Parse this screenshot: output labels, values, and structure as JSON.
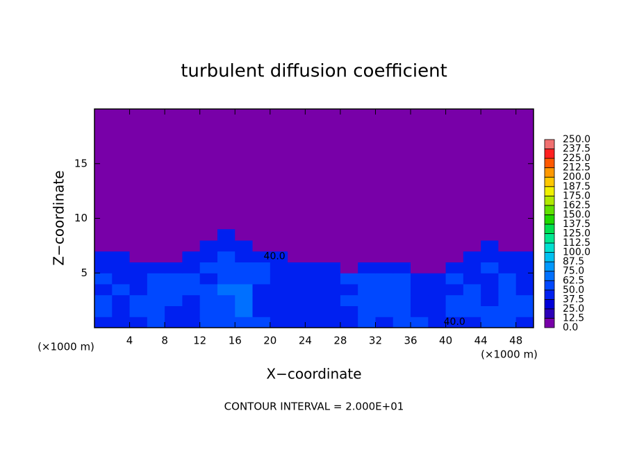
{
  "chart_data": {
    "type": "heatmap",
    "title": "turbulent diffusion coefficient",
    "xlabel": "X−coordinate",
    "ylabel": "Z−coordinate",
    "x_unit_left": "(×1000 m)",
    "x_unit_right": "(×1000 m)",
    "footnote": "CONTOUR INTERVAL = 2.000E+01",
    "xlim": [
      0,
      50
    ],
    "ylim": [
      0,
      20
    ],
    "xticks": [
      4,
      8,
      12,
      16,
      20,
      24,
      28,
      32,
      36,
      40,
      44,
      48
    ],
    "yticks": [
      5,
      10,
      15
    ],
    "field_xbins": [
      0,
      2,
      4,
      6,
      8,
      10,
      12,
      14,
      16,
      18,
      20,
      22,
      24,
      26,
      28,
      30,
      32,
      34,
      36,
      38,
      40,
      42,
      44,
      46,
      48,
      50
    ],
    "field_ybins": [
      0,
      1,
      2,
      3,
      4,
      5,
      6,
      7,
      8,
      9
    ],
    "field": [
      [
        45,
        40,
        45,
        50,
        45,
        40,
        50,
        55,
        60,
        50,
        45,
        40,
        40,
        45,
        45,
        50,
        45,
        55,
        50,
        45,
        40,
        45,
        50,
        55,
        45
      ],
      [
        50,
        45,
        50,
        55,
        45,
        45,
        55,
        60,
        65,
        45,
        45,
        40,
        40,
        40,
        45,
        55,
        50,
        55,
        45,
        45,
        50,
        55,
        50,
        60,
        50
      ],
      [
        50,
        45,
        50,
        55,
        50,
        45,
        55,
        60,
        70,
        45,
        40,
        40,
        40,
        40,
        50,
        55,
        50,
        50,
        45,
        40,
        50,
        55,
        45,
        55,
        50
      ],
      [
        45,
        50,
        45,
        55,
        55,
        50,
        50,
        65,
        65,
        45,
        40,
        40,
        40,
        40,
        45,
        55,
        55,
        50,
        45,
        45,
        45,
        50,
        45,
        50,
        45
      ],
      [
        50,
        45,
        40,
        50,
        55,
        50,
        45,
        60,
        60,
        50,
        45,
        45,
        45,
        45,
        50,
        50,
        50,
        50,
        45,
        45,
        50,
        45,
        45,
        50,
        45
      ],
      [
        45,
        45,
        40,
        40,
        45,
        45,
        50,
        55,
        55,
        50,
        45,
        45,
        40,
        40,
        0,
        40,
        45,
        45,
        0,
        0,
        40,
        45,
        50,
        45,
        45
      ],
      [
        40,
        40,
        0,
        0,
        0,
        40,
        45,
        50,
        45,
        45,
        40,
        0,
        0,
        0,
        0,
        0,
        0,
        0,
        0,
        0,
        0,
        40,
        45,
        40,
        40
      ],
      [
        0,
        0,
        0,
        0,
        0,
        0,
        40,
        45,
        40,
        0,
        0,
        0,
        0,
        0,
        0,
        0,
        0,
        0,
        0,
        0,
        0,
        0,
        40,
        0,
        0
      ],
      [
        0,
        0,
        0,
        0,
        0,
        0,
        0,
        45,
        0,
        0,
        0,
        0,
        0,
        0,
        0,
        0,
        0,
        0,
        0,
        0,
        0,
        0,
        0,
        0,
        0
      ]
    ],
    "annotations": [
      {
        "x": 20.5,
        "y": 6.5,
        "value": 40,
        "label": "40.0"
      },
      {
        "x": 41,
        "y": 0.5,
        "value": 40,
        "label": "40.0"
      }
    ],
    "colorbar": {
      "lim": [
        0,
        250
      ],
      "levels": [
        {
          "value": 0,
          "label": "0.0"
        },
        12.5,
        {
          "value": 25,
          "label": "25.0"
        },
        37.5,
        {
          "value": 50,
          "label": "50.0"
        },
        62.5,
        {
          "value": 75,
          "label": "75.0"
        },
        87.5,
        {
          "value": 100,
          "label": "100.0"
        },
        112.5,
        {
          "value": 125,
          "label": "125.0"
        },
        137.5,
        {
          "value": 150,
          "label": "150.0"
        },
        162.5,
        {
          "value": 175,
          "label": "175.0"
        },
        187.5,
        {
          "value": 200,
          "label": "200.0"
        },
        212.5,
        {
          "value": 225,
          "label": "225.0"
        },
        237.5,
        {
          "value": 250,
          "label": "250.0"
        }
      ],
      "colors": [
        "#7800a8",
        "#2c00b8",
        "#0000d8",
        "#0020f0",
        "#0048ff",
        "#0070ff",
        "#0098ff",
        "#00c0f0",
        "#00e0d0",
        "#00e890",
        "#00e050",
        "#20d800",
        "#60e000",
        "#b0e800",
        "#f0f000",
        "#ffc800",
        "#ff9800",
        "#ff5800",
        "#ff2020",
        "#f07070"
      ]
    }
  }
}
